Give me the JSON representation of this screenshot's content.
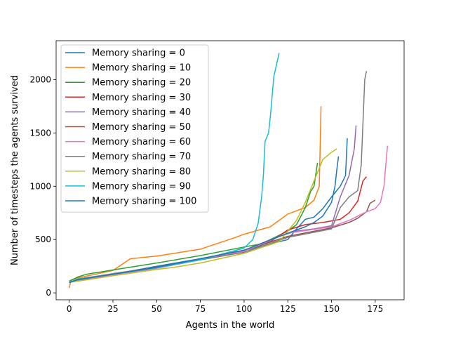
{
  "chart_data": {
    "type": "line",
    "title": "",
    "xlabel": "Agents in the world",
    "ylabel": "Number of timesteps the agents survived",
    "xlim": [
      -7.5,
      191.5
    ],
    "ylim": [
      -65,
      2365
    ],
    "xticks": [
      0,
      25,
      50,
      75,
      100,
      125,
      150,
      175
    ],
    "yticks": [
      0,
      500,
      1000,
      1500,
      2000
    ],
    "grid": false,
    "legend_position": "upper-left",
    "series": [
      {
        "name": "Memory sharing = 0",
        "color": "#1f77b4",
        "x": [
          0,
          5,
          25,
          50,
          75,
          100,
          115,
          125,
          130,
          135,
          140,
          145,
          150,
          155,
          158,
          159
        ],
        "y": [
          95,
          130,
          175,
          250,
          320,
          395,
          460,
          500,
          600,
          690,
          710,
          790,
          900,
          1000,
          1100,
          1450
        ]
      },
      {
        "name": "Memory sharing = 10",
        "color": "#ff7f0e",
        "x": [
          0,
          1,
          5,
          25,
          35,
          50,
          75,
          95,
          100,
          115,
          125,
          130,
          135,
          140,
          143,
          144
        ],
        "y": [
          45,
          120,
          140,
          210,
          320,
          345,
          410,
          520,
          550,
          620,
          740,
          770,
          800,
          870,
          1000,
          1750
        ]
      },
      {
        "name": "Memory sharing = 20",
        "color": "#2ca02c",
        "x": [
          0,
          5,
          10,
          25,
          50,
          75,
          100,
          110,
          125,
          130,
          135,
          138,
          140,
          142
        ],
        "y": [
          110,
          150,
          175,
          215,
          280,
          350,
          430,
          460,
          580,
          640,
          800,
          950,
          1000,
          1220
        ]
      },
      {
        "name": "Memory sharing = 30",
        "color": "#d62728",
        "x": [
          0,
          5,
          25,
          50,
          75,
          100,
          115,
          125,
          135,
          145,
          155,
          160,
          165,
          168,
          170
        ],
        "y": [
          100,
          120,
          180,
          240,
          320,
          400,
          480,
          590,
          640,
          660,
          690,
          750,
          860,
          1050,
          1090
        ]
      },
      {
        "name": "Memory sharing = 40",
        "color": "#9467bd",
        "x": [
          0,
          5,
          25,
          50,
          75,
          100,
          120,
          130,
          140,
          150,
          155,
          160,
          163,
          164
        ],
        "y": [
          100,
          130,
          180,
          240,
          320,
          400,
          530,
          580,
          600,
          630,
          900,
          1100,
          1350,
          1570
        ]
      },
      {
        "name": "Memory sharing = 50",
        "color": "#8c564b",
        "x": [
          0,
          5,
          25,
          50,
          75,
          100,
          125,
          150,
          160,
          165,
          170,
          172,
          175
        ],
        "y": [
          100,
          120,
          175,
          240,
          315,
          395,
          530,
          610,
          660,
          700,
          760,
          840,
          870
        ]
      },
      {
        "name": "Memory sharing = 60",
        "color": "#e377c2",
        "x": [
          0,
          5,
          25,
          50,
          75,
          100,
          125,
          150,
          160,
          170,
          175,
          178,
          180,
          182
        ],
        "y": [
          100,
          110,
          170,
          230,
          310,
          390,
          560,
          620,
          680,
          760,
          790,
          850,
          1000,
          1380
        ]
      },
      {
        "name": "Memory sharing = 70",
        "color": "#7f7f7f",
        "x": [
          0,
          5,
          25,
          50,
          75,
          100,
          125,
          150,
          155,
          160,
          165,
          167,
          168,
          169,
          170
        ],
        "y": [
          100,
          120,
          180,
          240,
          310,
          380,
          520,
          600,
          800,
          900,
          960,
          1200,
          1600,
          2000,
          2080
        ]
      },
      {
        "name": "Memory sharing = 80",
        "color": "#bcbd22",
        "x": [
          0,
          5,
          25,
          50,
          60,
          75,
          100,
          120,
          130,
          135,
          140,
          145,
          150,
          153
        ],
        "y": [
          100,
          110,
          160,
          220,
          240,
          280,
          370,
          480,
          680,
          850,
          1050,
          1250,
          1320,
          1350
        ]
      },
      {
        "name": "Memory sharing = 90",
        "color": "#17becf",
        "x": [
          0,
          5,
          25,
          50,
          75,
          100,
          105,
          108,
          110,
          111,
          112,
          114,
          115,
          117,
          118,
          120
        ],
        "y": [
          100,
          130,
          175,
          235,
          310,
          420,
          500,
          650,
          900,
          1100,
          1420,
          1500,
          1650,
          2030,
          2100,
          2250
        ]
      },
      {
        "name": "Memory sharing = 100",
        "color": "#1f77b4",
        "x": [
          0,
          5,
          25,
          50,
          75,
          100,
          125,
          135,
          140,
          145,
          150,
          152,
          153,
          154
        ],
        "y": [
          95,
          125,
          175,
          240,
          320,
          400,
          560,
          620,
          660,
          720,
          850,
          1000,
          1150,
          1280
        ]
      }
    ]
  }
}
